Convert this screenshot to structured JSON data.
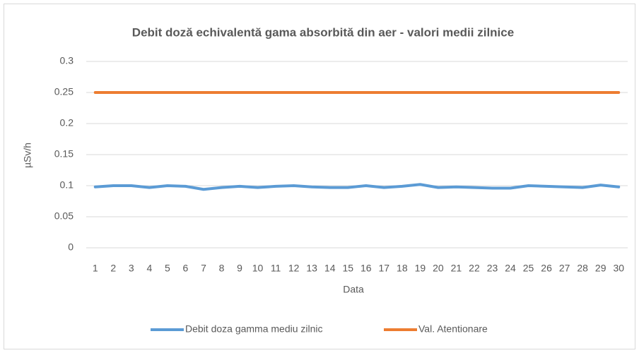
{
  "chart_data": {
    "type": "line",
    "title": "Debit doză echivalentă gama absorbită din aer - valori medii zilnice",
    "x_label": "Data",
    "y_label": "µSv/h",
    "categories": [
      1,
      2,
      3,
      4,
      5,
      6,
      7,
      8,
      9,
      10,
      11,
      12,
      13,
      14,
      15,
      16,
      17,
      18,
      19,
      20,
      21,
      22,
      23,
      24,
      25,
      26,
      27,
      28,
      29,
      30
    ],
    "series": [
      {
        "name": "Debit doza gamma mediu zilnic",
        "color": "#5b9bd5",
        "values": [
          0.098,
          0.1,
          0.1,
          0.097,
          0.1,
          0.099,
          0.094,
          0.097,
          0.099,
          0.097,
          0.099,
          0.1,
          0.098,
          0.097,
          0.097,
          0.1,
          0.097,
          0.099,
          0.102,
          0.097,
          0.098,
          0.097,
          0.096,
          0.096,
          0.1,
          0.099,
          0.098,
          0.097,
          0.101,
          0.098
        ]
      },
      {
        "name": "Val. Atentionare",
        "color": "#ed7d31",
        "values": [
          0.25,
          0.25,
          0.25,
          0.25,
          0.25,
          0.25,
          0.25,
          0.25,
          0.25,
          0.25,
          0.25,
          0.25,
          0.25,
          0.25,
          0.25,
          0.25,
          0.25,
          0.25,
          0.25,
          0.25,
          0.25,
          0.25,
          0.25,
          0.25,
          0.25,
          0.25,
          0.25,
          0.25,
          0.25,
          0.25
        ]
      }
    ],
    "ylim": [
      0,
      0.3
    ],
    "yticks": [
      0,
      0.05,
      0.1,
      0.15,
      0.2,
      0.25,
      0.3
    ],
    "grid": true,
    "legend": "bottom"
  }
}
